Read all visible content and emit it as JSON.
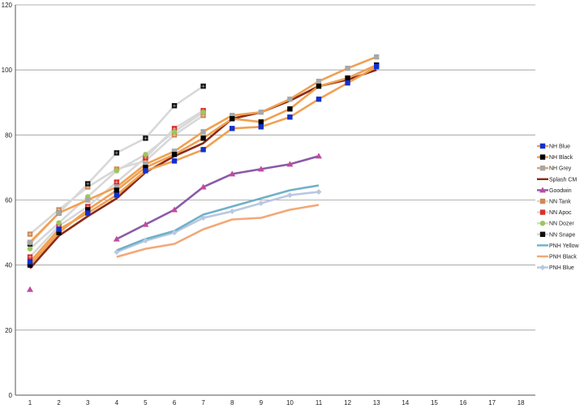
{
  "chart_data": {
    "type": "line",
    "x": [
      1,
      2,
      3,
      4,
      5,
      6,
      7,
      8,
      9,
      10,
      11,
      12,
      13,
      14,
      15,
      16,
      17,
      18
    ],
    "x_tick_labels": [
      "1",
      "2",
      "3",
      "4",
      "5",
      "6",
      "7",
      "8",
      "9",
      "10",
      "11",
      "12",
      "13",
      "14",
      "15",
      "16",
      "17",
      "18"
    ],
    "y_tick_labels": [
      "0",
      "20",
      "40",
      "60",
      "80",
      "100",
      "120"
    ],
    "ylim": [
      0,
      120
    ],
    "grid": "horizontal",
    "legend_position": "right",
    "series": [
      {
        "name": "NH Blue",
        "color": "#f0a050",
        "marker": "square",
        "marker_color": "#1030d0",
        "points": [
          [
            1,
            41
          ],
          [
            2,
            51
          ],
          [
            3,
            56
          ],
          [
            4,
            61.5
          ],
          [
            5,
            69
          ],
          [
            6,
            72
          ],
          [
            7,
            75.5
          ],
          [
            8,
            82
          ],
          [
            9,
            82.5
          ],
          [
            10,
            85.5
          ],
          [
            11,
            91
          ],
          [
            12,
            96
          ],
          [
            13,
            101
          ]
        ]
      },
      {
        "name": "NH Black",
        "color": "#f0a050",
        "marker": "square",
        "marker_color": "#000000",
        "points": [
          [
            1,
            40
          ],
          [
            2,
            50
          ],
          [
            3,
            57
          ],
          [
            4,
            63
          ],
          [
            5,
            70
          ],
          [
            6,
            74
          ],
          [
            7,
            79
          ],
          [
            8,
            85
          ],
          [
            9,
            84
          ],
          [
            10,
            88
          ],
          [
            11,
            95
          ],
          [
            12,
            97.5
          ],
          [
            13,
            101.5
          ]
        ]
      },
      {
        "name": "NH Grey",
        "color": "#f0a050",
        "marker": "square",
        "marker_color": "#a8a8a8",
        "points": [
          [
            1,
            47
          ],
          [
            2,
            56
          ],
          [
            3,
            60
          ],
          [
            4,
            64
          ],
          [
            5,
            71
          ],
          [
            6,
            75
          ],
          [
            7,
            81
          ],
          [
            8,
            86
          ],
          [
            9,
            87
          ],
          [
            10,
            91
          ],
          [
            11,
            96.5
          ],
          [
            12,
            100.5
          ],
          [
            13,
            104
          ]
        ]
      },
      {
        "name": "Splash CM",
        "color": "#8b2a18",
        "marker": "none",
        "marker_color": "#8b2a18",
        "points": [
          [
            1,
            39
          ],
          [
            2,
            49
          ],
          [
            3,
            55
          ],
          [
            4,
            60.5
          ],
          [
            5,
            68.5
          ],
          [
            6,
            73.5
          ],
          [
            7,
            77.5
          ],
          [
            8,
            85
          ],
          [
            9,
            87
          ],
          [
            10,
            90.5
          ],
          [
            11,
            95
          ],
          [
            12,
            97
          ],
          [
            13,
            100
          ]
        ]
      },
      {
        "name": "Goodwin",
        "color": "#8a5aa8",
        "marker": "triangle",
        "marker_color": "#c04aa0",
        "points": [
          [
            1,
            32.5
          ],
          [
            4,
            48
          ],
          [
            5,
            52.5
          ],
          [
            6,
            57
          ],
          [
            7,
            64
          ],
          [
            8,
            68
          ],
          [
            9,
            69.5
          ],
          [
            10,
            71
          ],
          [
            11,
            73.5
          ]
        ]
      },
      {
        "name": "NN Tank",
        "color": "#d8d8d8",
        "marker": "square",
        "marker_color": "#d08850",
        "points": [
          [
            1,
            49.5
          ],
          [
            2,
            57
          ],
          [
            3,
            64
          ],
          [
            4,
            69.5
          ],
          [
            5,
            72
          ],
          [
            6,
            80
          ],
          [
            7,
            86
          ]
        ]
      },
      {
        "name": "NN Apoc",
        "color": "#d8d8d8",
        "marker": "square",
        "marker_color": "#d83030",
        "points": [
          [
            1,
            42.5
          ],
          [
            2,
            52
          ],
          [
            3,
            58
          ],
          [
            4,
            65.5
          ],
          [
            5,
            73
          ],
          [
            6,
            82
          ],
          [
            7,
            87.5
          ]
        ]
      },
      {
        "name": "NN Dozer",
        "color": "#d8d8d8",
        "marker": "circle",
        "marker_color": "#9ac85a",
        "points": [
          [
            1,
            45
          ],
          [
            2,
            53
          ],
          [
            3,
            61
          ],
          [
            4,
            69
          ],
          [
            5,
            74
          ],
          [
            6,
            81
          ],
          [
            7,
            87
          ]
        ]
      },
      {
        "name": "NN Snape",
        "color": "#d8d8d8",
        "marker": "square",
        "marker_color": "#101010",
        "points": [
          [
            1,
            46.5
          ],
          [
            2,
            56
          ],
          [
            3,
            65
          ],
          [
            4,
            74.5
          ],
          [
            5,
            79
          ],
          [
            6,
            89
          ],
          [
            7,
            95
          ]
        ]
      },
      {
        "name": "PNH Yellow",
        "color": "#70b0c8",
        "marker": "none",
        "marker_color": "#70b0c8",
        "points": [
          [
            4,
            44.5
          ],
          [
            5,
            48
          ],
          [
            6,
            50.5
          ],
          [
            7,
            55.5
          ],
          [
            8,
            58
          ],
          [
            9,
            60.5
          ],
          [
            10,
            63
          ],
          [
            11,
            64.5
          ]
        ]
      },
      {
        "name": "PNH Black",
        "color": "#f2a878",
        "marker": "none",
        "marker_color": "#f2a878",
        "points": [
          [
            4,
            42.5
          ],
          [
            5,
            45
          ],
          [
            6,
            46.5
          ],
          [
            7,
            51
          ],
          [
            8,
            54
          ],
          [
            9,
            54.5
          ],
          [
            10,
            57
          ],
          [
            11,
            58.5
          ]
        ]
      },
      {
        "name": "PNH Blue",
        "color": "#b8c8e0",
        "marker": "diamond",
        "marker_color": "#b8c8e0",
        "points": [
          [
            4,
            44
          ],
          [
            5,
            47.5
          ],
          [
            6,
            50
          ],
          [
            7,
            54.5
          ],
          [
            8,
            56.5
          ],
          [
            9,
            59
          ],
          [
            10,
            61.5
          ],
          [
            11,
            62.5
          ]
        ]
      }
    ]
  }
}
